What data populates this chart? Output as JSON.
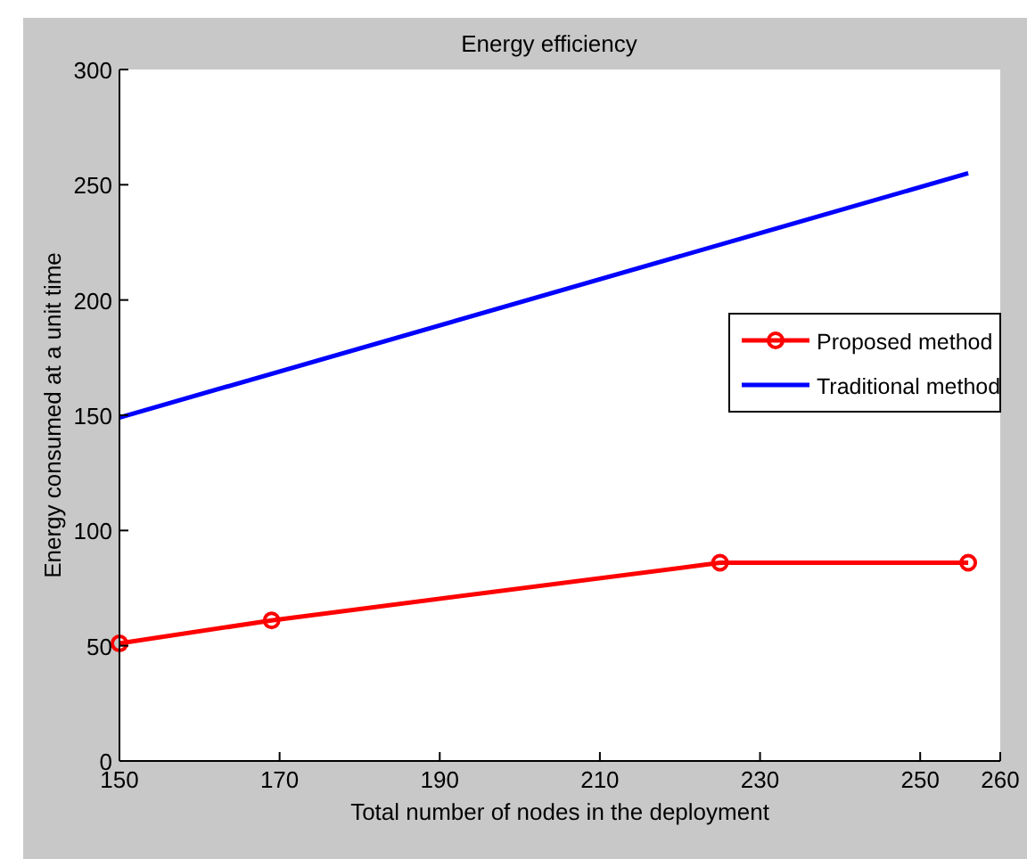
{
  "chart_data": {
    "type": "line",
    "title": "Energy efficiency",
    "xlabel": "Total number of nodes in the deployment",
    "ylabel": "Energy consumed at a unit time",
    "xlim": [
      150,
      260
    ],
    "xticks": [
      150,
      170,
      190,
      210,
      230,
      250,
      260
    ],
    "ylim": [
      0,
      300
    ],
    "yticks": [
      0,
      50,
      100,
      150,
      200,
      250,
      300
    ],
    "grid": false,
    "legend": "right",
    "series": [
      {
        "name": "Proposed method",
        "color": "#ff0000",
        "x": [
          150,
          169,
          225,
          256
        ],
        "values": [
          51,
          61,
          86,
          86
        ],
        "marker": "circle"
      },
      {
        "name": "Traditional method",
        "color": "#0000ff",
        "x": [
          150,
          256
        ],
        "values": [
          149,
          255
        ],
        "marker": "none"
      }
    ]
  }
}
